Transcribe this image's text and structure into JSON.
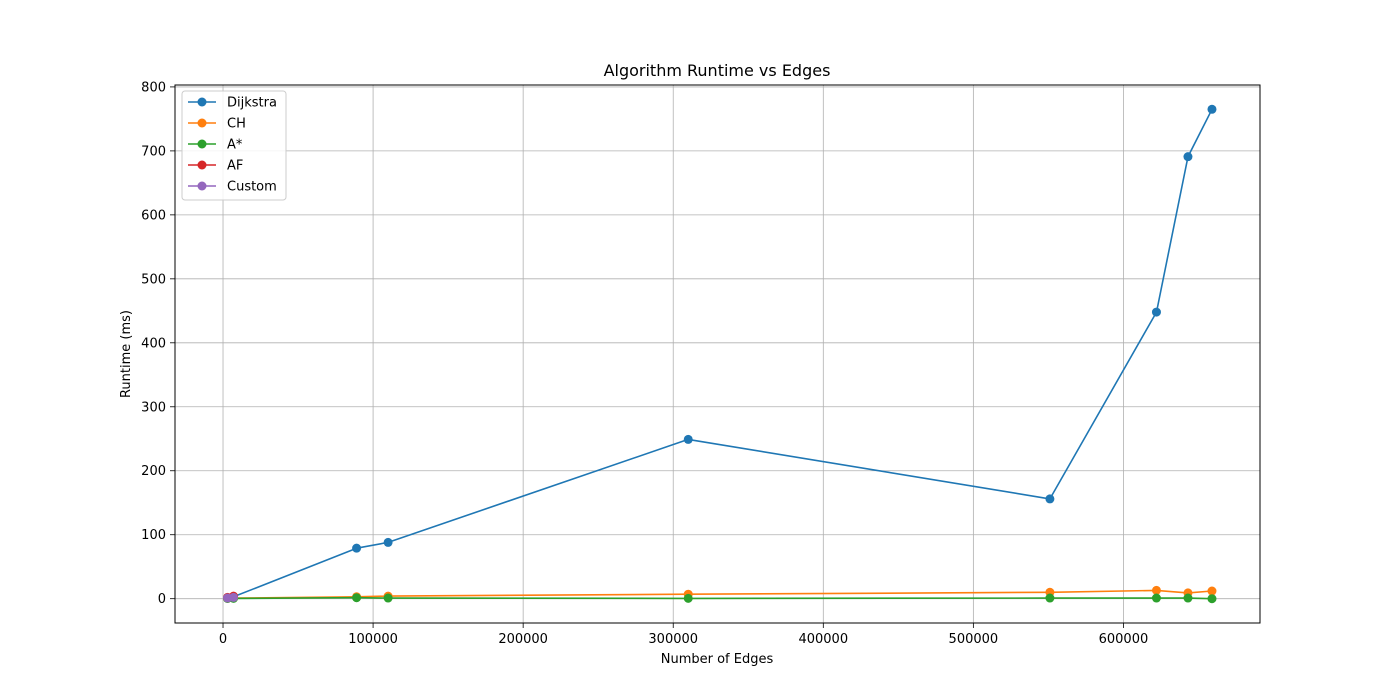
{
  "chart_data": {
    "type": "line",
    "title": "Algorithm Runtime vs Edges",
    "xlabel": "Number of Edges",
    "ylabel": "Runtime (ms)",
    "xlim": [
      -32000,
      691000
    ],
    "ylim": [
      -38,
      803
    ],
    "xticks": [
      0,
      100000,
      200000,
      300000,
      400000,
      500000,
      600000
    ],
    "yticks": [
      0,
      100,
      200,
      300,
      400,
      500,
      600,
      700,
      800
    ],
    "grid": true,
    "legend_position": "upper-left",
    "colors": {
      "Dijkstra": "#1f77b4",
      "CH": "#ff7f0e",
      "A*": "#2ca02c",
      "AF": "#d62728",
      "Custom": "#9467bd"
    },
    "series": [
      {
        "name": "Dijkstra",
        "x": [
          3000,
          7000,
          89000,
          110000,
          310000,
          551000,
          622000,
          643000,
          659000
        ],
        "y": [
          1,
          3,
          79,
          88,
          249,
          156,
          448,
          691,
          765
        ]
      },
      {
        "name": "CH",
        "x": [
          3000,
          7000,
          89000,
          110000,
          310000,
          551000,
          622000,
          643000,
          659000
        ],
        "y": [
          0.5,
          1,
          3,
          4,
          7,
          10,
          13,
          9,
          12
        ]
      },
      {
        "name": "A*",
        "x": [
          3000,
          7000,
          89000,
          110000,
          310000,
          551000,
          622000,
          643000,
          659000
        ],
        "y": [
          0.3,
          0.5,
          1.5,
          1,
          0.5,
          1,
          1,
          1,
          0
        ]
      },
      {
        "name": "AF",
        "x": [
          3000,
          7000
        ],
        "y": [
          2,
          4
        ]
      },
      {
        "name": "Custom",
        "x": [
          3000,
          7000
        ],
        "y": [
          1,
          2
        ]
      }
    ]
  }
}
